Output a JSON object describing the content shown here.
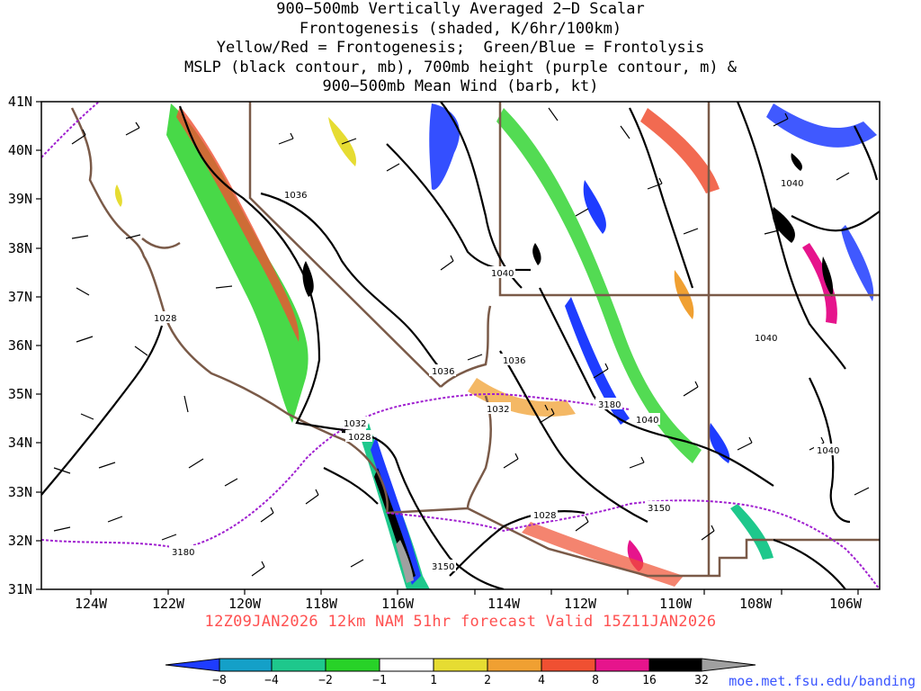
{
  "title_lines": [
    "900−500mb Vertically Averaged 2−D Scalar",
    "Frontogenesis (shaded, K/6hr/100km)",
    "Yellow/Red = Frontogenesis;  Green/Blue = Frontolysis",
    "MSLP (black contour, mb), 700mb height (purple contour, m) &",
    "900−500mb Mean Wind (barb, kt)"
  ],
  "lat_labels": [
    "41N",
    "40N",
    "39N",
    "38N",
    "37N",
    "36N",
    "35N",
    "34N",
    "33N",
    "32N",
    "31N"
  ],
  "lon_labels": [
    "124W",
    "122W",
    "120W",
    "118W",
    "116W",
    "114W",
    "112W",
    "110W",
    "108W",
    "106W"
  ],
  "forecast_caption": "12Z09JAN2026 12km NAM 51hr forecast Valid 15Z11JAN2026",
  "credit": "moe.met.fsu.edu/banding",
  "mslp_labels": [
    "1036",
    "1040",
    "1028",
    "1036",
    "1036",
    "1032",
    "1032",
    "1028",
    "1040",
    "1040",
    "1040",
    "1028",
    "1040"
  ],
  "height_labels": [
    "3180",
    "3180",
    "3150",
    "3150"
  ],
  "legend": {
    "ticks": [
      "−8",
      "−4",
      "−2",
      "−1",
      "1",
      "2",
      "4",
      "8",
      "16",
      "32"
    ],
    "colors": [
      "#1e3cff",
      "#14a0c8",
      "#1ec88c",
      "#28d228",
      "#ffffff",
      "#e6dc32",
      "#f0a032",
      "#f05032",
      "#e6148c",
      "#000000",
      "#a0a0a0"
    ]
  },
  "colors": {
    "coast": "#7a5a48",
    "mslp": "#000000",
    "height": "#a020d0",
    "caption": "#ff5050",
    "credit": "#3a55ff"
  }
}
